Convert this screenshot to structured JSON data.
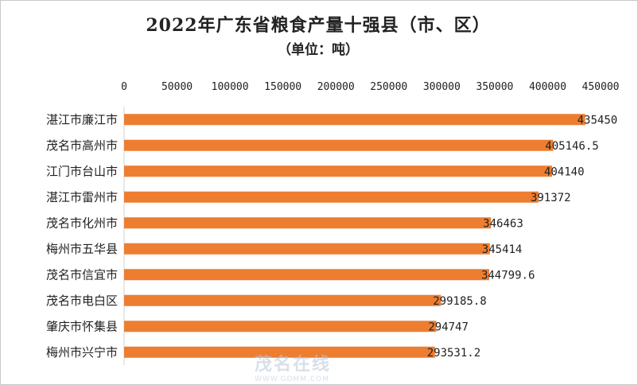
{
  "chart_data": {
    "type": "bar",
    "orientation": "horizontal",
    "title": "2022年广东省粮食产量十强县（市、区）",
    "subtitle": "（单位：吨）",
    "categories": [
      "湛江市廉江市",
      "茂名市高州市",
      "江门市台山市",
      "湛江市雷州市",
      "茂名市化州市",
      "梅州市五华县",
      "茂名市信宜市",
      "茂名市电白区",
      "肇庆市怀集县",
      "梅州市兴宁市"
    ],
    "values": [
      435450,
      405146.5,
      404140,
      391372,
      346463,
      345414,
      344799.6,
      299185.8,
      294747,
      293531.2
    ],
    "value_labels": [
      "435450",
      "405146.5",
      "404140",
      "391372",
      "346463",
      "345414",
      "344799.6",
      "299185.8",
      "294747",
      "293531.2"
    ],
    "xlim": [
      0,
      450000
    ],
    "x_ticks": [
      "0",
      "50000",
      "100000",
      "150000",
      "200000",
      "250000",
      "300000",
      "350000",
      "400000",
      "450000"
    ],
    "x_axis_position": "top",
    "grid": false,
    "bar_color": "#ED7D31"
  },
  "watermark": {
    "text": "茂名在线",
    "url": "WWW.GDMM.COM"
  }
}
